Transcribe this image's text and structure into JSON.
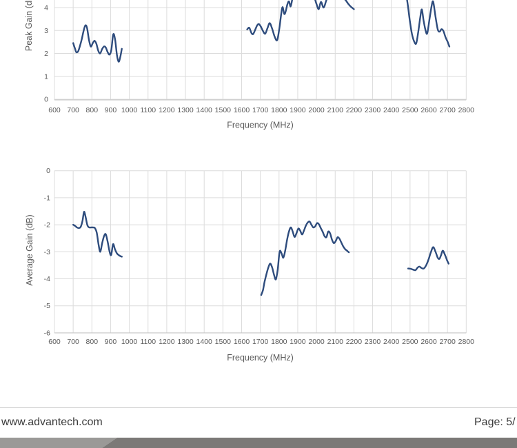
{
  "footer": {
    "website": "www.advantech.com",
    "page_label": "Page: 5/",
    "bar": {
      "light": "#9a9997",
      "dark": "#7b7977"
    }
  },
  "chart_data": [
    {
      "type": "line",
      "title": "",
      "xlabel": "Frequency (MHz)",
      "ylabel": "Peak Gain (dBi)",
      "xlim": [
        600,
        2800
      ],
      "ylim_visible": [
        0,
        4.35
      ],
      "grid": true,
      "legend": "none",
      "line_color": "#2e4c7d",
      "x_ticks": [
        600,
        700,
        800,
        900,
        1000,
        1100,
        1200,
        1300,
        1400,
        1500,
        1600,
        1700,
        1800,
        1900,
        2000,
        2100,
        2200,
        2300,
        2400,
        2500,
        2600,
        2700,
        2800
      ],
      "y_ticks": [
        4,
        3,
        2,
        1,
        0
      ],
      "series": [
        {
          "name": "Peak Gain",
          "segments": [
            [
              [
                700,
                2.45
              ],
              [
                710,
                2.2
              ],
              [
                716,
                2.06
              ],
              [
                726,
                2.08
              ],
              [
                736,
                2.32
              ],
              [
                746,
                2.62
              ],
              [
                756,
                3.0
              ],
              [
                765,
                3.22
              ],
              [
                774,
                3.12
              ],
              [
                784,
                2.6
              ],
              [
                794,
                2.3
              ],
              [
                804,
                2.44
              ],
              [
                814,
                2.55
              ],
              [
                824,
                2.42
              ],
              [
                834,
                2.12
              ],
              [
                844,
                2.0
              ],
              [
                854,
                2.18
              ],
              [
                864,
                2.3
              ],
              [
                874,
                2.26
              ],
              [
                884,
                2.06
              ],
              [
                894,
                1.95
              ],
              [
                904,
                2.15
              ],
              [
                914,
                2.83
              ],
              [
                924,
                2.6
              ],
              [
                934,
                1.92
              ],
              [
                943,
                1.64
              ],
              [
                951,
                1.82
              ],
              [
                960,
                2.2
              ]
            ],
            [
              [
                1630,
                3.05
              ],
              [
                1641,
                3.12
              ],
              [
                1652,
                2.9
              ],
              [
                1661,
                2.84
              ],
              [
                1672,
                3.02
              ],
              [
                1683,
                3.22
              ],
              [
                1692,
                3.28
              ],
              [
                1702,
                3.18
              ],
              [
                1714,
                2.98
              ],
              [
                1726,
                2.86
              ],
              [
                1738,
                3.1
              ],
              [
                1750,
                3.32
              ],
              [
                1763,
                3.08
              ],
              [
                1777,
                2.72
              ],
              [
                1790,
                2.58
              ],
              [
                1802,
                3.1
              ],
              [
                1812,
                3.75
              ],
              [
                1819,
                4.02
              ],
              [
                1828,
                3.72
              ],
              [
                1836,
                3.85
              ],
              [
                1845,
                4.15
              ],
              [
                1853,
                4.27
              ],
              [
                1862,
                4.05
              ],
              [
                1872,
                4.4
              ],
              [
                1884,
                4.65
              ],
              [
                1896,
                4.5
              ],
              [
                1908,
                4.75
              ],
              [
                1922,
                4.88
              ],
              [
                1936,
                4.62
              ],
              [
                1950,
                4.78
              ],
              [
                1964,
                4.52
              ],
              [
                1978,
                4.66
              ],
              [
                1990,
                4.42
              ],
              [
                2000,
                4.16
              ],
              [
                2012,
                3.93
              ],
              [
                2024,
                4.25
              ],
              [
                2038,
                4.0
              ],
              [
                2052,
                4.3
              ],
              [
                2066,
                4.6
              ],
              [
                2082,
                4.78
              ],
              [
                2098,
                4.6
              ],
              [
                2114,
                4.76
              ],
              [
                2130,
                4.58
              ],
              [
                2145,
                4.42
              ],
              [
                2158,
                4.3
              ],
              [
                2172,
                4.14
              ],
              [
                2186,
                4.02
              ],
              [
                2200,
                3.93
              ]
            ],
            [
              [
                2482,
                4.45
              ],
              [
                2490,
                4.0
              ],
              [
                2500,
                3.35
              ],
              [
                2510,
                2.85
              ],
              [
                2522,
                2.52
              ],
              [
                2533,
                2.44
              ],
              [
                2544,
                2.95
              ],
              [
                2555,
                3.6
              ],
              [
                2563,
                3.92
              ],
              [
                2572,
                3.45
              ],
              [
                2583,
                3.0
              ],
              [
                2592,
                2.88
              ],
              [
                2604,
                3.5
              ],
              [
                2616,
                4.1
              ],
              [
                2624,
                4.25
              ],
              [
                2636,
                3.6
              ],
              [
                2648,
                3.05
              ],
              [
                2658,
                2.95
              ],
              [
                2668,
                3.06
              ],
              [
                2678,
                2.98
              ],
              [
                2690,
                2.7
              ],
              [
                2700,
                2.52
              ],
              [
                2710,
                2.3
              ]
            ]
          ]
        }
      ]
    },
    {
      "type": "line",
      "title": "",
      "xlabel": "Frequency (MHz)",
      "ylabel": "Average Gain (dB)",
      "xlim": [
        600,
        2800
      ],
      "ylim": [
        -6,
        0
      ],
      "grid": true,
      "legend": "none",
      "line_color": "#2e4c7d",
      "x_ticks": [
        600,
        700,
        800,
        900,
        1000,
        1100,
        1200,
        1300,
        1400,
        1500,
        1600,
        1700,
        1800,
        1900,
        2000,
        2100,
        2200,
        2300,
        2400,
        2500,
        2600,
        2700,
        2800
      ],
      "y_ticks": [
        0,
        -1,
        -2,
        -3,
        -4,
        -5,
        -6
      ],
      "series": [
        {
          "name": "Average Gain",
          "segments": [
            [
              [
                700,
                -2.0
              ],
              [
                710,
                -2.04
              ],
              [
                720,
                -2.1
              ],
              [
                730,
                -2.12
              ],
              [
                740,
                -2.08
              ],
              [
                750,
                -1.85
              ],
              [
                758,
                -1.52
              ],
              [
                766,
                -1.7
              ],
              [
                776,
                -2.02
              ],
              [
                786,
                -2.1
              ],
              [
                796,
                -2.1
              ],
              [
                806,
                -2.1
              ],
              [
                816,
                -2.12
              ],
              [
                826,
                -2.3
              ],
              [
                836,
                -2.75
              ],
              [
                845,
                -3.0
              ],
              [
                855,
                -2.68
              ],
              [
                865,
                -2.42
              ],
              [
                874,
                -2.35
              ],
              [
                884,
                -2.62
              ],
              [
                894,
                -2.98
              ],
              [
                903,
                -3.12
              ],
              [
                913,
                -2.72
              ],
              [
                923,
                -2.9
              ],
              [
                933,
                -3.05
              ],
              [
                943,
                -3.12
              ],
              [
                952,
                -3.16
              ],
              [
                960,
                -3.18
              ]
            ],
            [
              [
                1705,
                -4.6
              ],
              [
                1714,
                -4.42
              ],
              [
                1723,
                -4.1
              ],
              [
                1733,
                -3.82
              ],
              [
                1743,
                -3.58
              ],
              [
                1753,
                -3.44
              ],
              [
                1763,
                -3.58
              ],
              [
                1773,
                -3.85
              ],
              [
                1783,
                -4.02
              ],
              [
                1793,
                -3.65
              ],
              [
                1803,
                -3.0
              ],
              [
                1813,
                -3.05
              ],
              [
                1823,
                -3.22
              ],
              [
                1833,
                -2.95
              ],
              [
                1843,
                -2.55
              ],
              [
                1853,
                -2.25
              ],
              [
                1863,
                -2.1
              ],
              [
                1873,
                -2.25
              ],
              [
                1883,
                -2.45
              ],
              [
                1893,
                -2.32
              ],
              [
                1903,
                -2.14
              ],
              [
                1913,
                -2.22
              ],
              [
                1923,
                -2.36
              ],
              [
                1933,
                -2.22
              ],
              [
                1943,
                -2.04
              ],
              [
                1953,
                -1.92
              ],
              [
                1963,
                -1.88
              ],
              [
                1973,
                -2.0
              ],
              [
                1983,
                -2.1
              ],
              [
                1993,
                -2.06
              ],
              [
                2003,
                -1.94
              ],
              [
                2013,
                -1.98
              ],
              [
                2023,
                -2.12
              ],
              [
                2033,
                -2.26
              ],
              [
                2043,
                -2.42
              ],
              [
                2053,
                -2.46
              ],
              [
                2063,
                -2.25
              ],
              [
                2073,
                -2.32
              ],
              [
                2083,
                -2.55
              ],
              [
                2093,
                -2.68
              ],
              [
                2103,
                -2.6
              ],
              [
                2113,
                -2.46
              ],
              [
                2123,
                -2.52
              ],
              [
                2133,
                -2.66
              ],
              [
                2143,
                -2.8
              ],
              [
                2153,
                -2.9
              ],
              [
                2163,
                -2.96
              ],
              [
                2173,
                -3.02
              ]
            ],
            [
              [
                2490,
                -3.62
              ],
              [
                2503,
                -3.63
              ],
              [
                2516,
                -3.66
              ],
              [
                2529,
                -3.68
              ],
              [
                2541,
                -3.58
              ],
              [
                2551,
                -3.55
              ],
              [
                2561,
                -3.6
              ],
              [
                2573,
                -3.62
              ],
              [
                2586,
                -3.5
              ],
              [
                2599,
                -3.28
              ],
              [
                2612,
                -3.0
              ],
              [
                2624,
                -2.83
              ],
              [
                2636,
                -3.0
              ],
              [
                2648,
                -3.22
              ],
              [
                2657,
                -3.26
              ],
              [
                2666,
                -3.12
              ],
              [
                2675,
                -2.96
              ],
              [
                2687,
                -3.12
              ],
              [
                2697,
                -3.3
              ],
              [
                2706,
                -3.44
              ]
            ]
          ]
        }
      ]
    }
  ]
}
